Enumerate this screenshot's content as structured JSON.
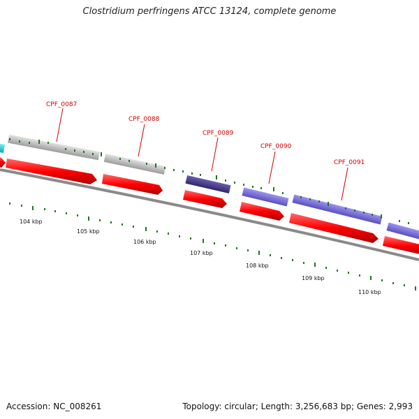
{
  "title": "Clostridium perfringens ATCC 13124, complete genome",
  "footer": {
    "accession": "Accession: NC_008261",
    "stats": "Topology: circular; Length: 3,256,683 bp; Genes: 2,993"
  },
  "colors": {
    "cds_forward_grey": "#c0c0c0",
    "cds_purple_dark": "#4a3f8c",
    "cds_purple_light": "#7b6fd6",
    "cds_cyan": "#1fd2d6",
    "reverse_arrow": "#ff0000",
    "backbone": "#888888",
    "tick": "#1a7a1a",
    "label": "#cc0000"
  },
  "genes": [
    {
      "label": "CPF_0087"
    },
    {
      "label": "CPF_0088"
    },
    {
      "label": "CPF_0089"
    },
    {
      "label": "CPF_0090"
    },
    {
      "label": "CPF_0091"
    }
  ],
  "scale_labels": [
    "104 kbp",
    "105 kbp",
    "106 kbp",
    "107 kbp",
    "108 kbp",
    "109 kbp",
    "110 kbp"
  ]
}
